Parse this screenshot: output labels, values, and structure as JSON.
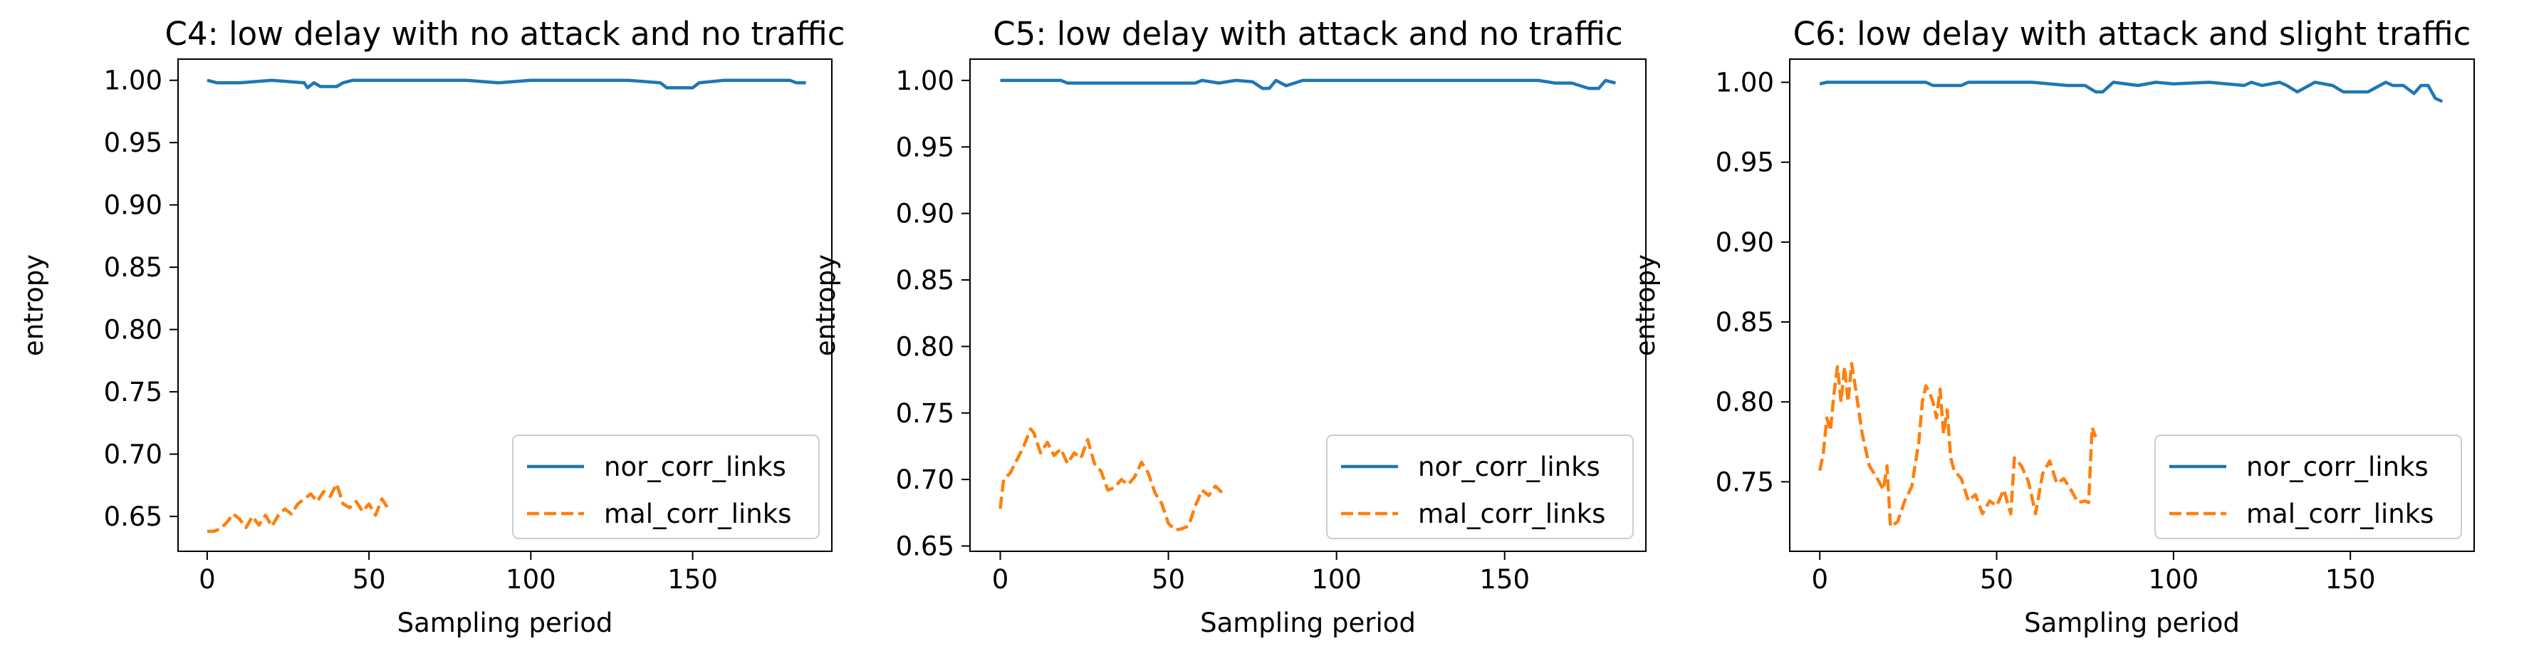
{
  "chart_data": [
    {
      "type": "line",
      "title": "C4: low delay with no attack and no traffic",
      "xlabel": "Sampling period",
      "ylabel": "entropy",
      "xlim": [
        -9,
        193
      ],
      "ylim": [
        0.622,
        1.017
      ],
      "xticks": [
        0,
        50,
        100,
        150
      ],
      "yticks": [
        0.65,
        0.7,
        0.75,
        0.8,
        0.85,
        0.9,
        0.95,
        1.0
      ],
      "legend": "lower-right",
      "grid": false,
      "series": [
        {
          "name": "nor_corr_links",
          "color": "#1f77b4",
          "style": "solid",
          "x": [
            0,
            3,
            10,
            20,
            25,
            30,
            31,
            33,
            35,
            40,
            42,
            45,
            80,
            90,
            100,
            110,
            120,
            130,
            140,
            142,
            150,
            152,
            160,
            170,
            180,
            182,
            185
          ],
          "y": [
            1.0,
            0.998,
            0.998,
            1.0,
            0.999,
            0.998,
            0.994,
            0.998,
            0.995,
            0.995,
            0.998,
            1.0,
            1.0,
            0.998,
            1.0,
            1.0,
            1.0,
            1.0,
            0.998,
            0.994,
            0.994,
            0.998,
            1.0,
            1.0,
            1.0,
            0.998,
            0.998
          ]
        },
        {
          "name": "mal_corr_links",
          "color": "#ff7f0e",
          "style": "dashed",
          "x": [
            0,
            2,
            4,
            6,
            8,
            10,
            12,
            14,
            16,
            18,
            20,
            22,
            24,
            26,
            28,
            30,
            32,
            34,
            36,
            38,
            40,
            42,
            44,
            46,
            48,
            50,
            52,
            54,
            56
          ],
          "y": [
            0.638,
            0.638,
            0.64,
            0.645,
            0.652,
            0.648,
            0.641,
            0.65,
            0.643,
            0.651,
            0.642,
            0.651,
            0.656,
            0.652,
            0.66,
            0.664,
            0.668,
            0.662,
            0.67,
            0.666,
            0.676,
            0.66,
            0.657,
            0.662,
            0.654,
            0.66,
            0.651,
            0.664,
            0.656
          ]
        }
      ]
    },
    {
      "type": "line",
      "title": "C5: low delay with attack and no traffic",
      "xlabel": "Sampling period",
      "ylabel": "entropy",
      "xlim": [
        -9,
        192
      ],
      "ylim": [
        0.646,
        1.016
      ],
      "xticks": [
        0,
        50,
        100,
        150
      ],
      "yticks": [
        0.65,
        0.7,
        0.75,
        0.8,
        0.85,
        0.9,
        0.95,
        1.0
      ],
      "legend": "lower-right",
      "grid": false,
      "series": [
        {
          "name": "nor_corr_links",
          "color": "#1f77b4",
          "style": "solid",
          "x": [
            0,
            10,
            18,
            20,
            40,
            58,
            60,
            65,
            70,
            75,
            78,
            80,
            82,
            85,
            90,
            95,
            100,
            120,
            140,
            160,
            165,
            170,
            175,
            178,
            180,
            183
          ],
          "y": [
            1.0,
            1.0,
            1.0,
            0.998,
            0.998,
            0.998,
            1.0,
            0.998,
            1.0,
            0.999,
            0.994,
            0.994,
            1.0,
            0.996,
            1.0,
            1.0,
            1.0,
            1.0,
            1.0,
            1.0,
            0.998,
            0.998,
            0.994,
            0.994,
            1.0,
            0.998
          ]
        },
        {
          "name": "mal_corr_links",
          "color": "#ff7f0e",
          "style": "dashed",
          "x": [
            0,
            1,
            3,
            5,
            7,
            9,
            10,
            12,
            14,
            16,
            18,
            20,
            22,
            24,
            26,
            28,
            30,
            32,
            34,
            36,
            38,
            40,
            42,
            44,
            46,
            48,
            50,
            52,
            54,
            56,
            58,
            60,
            62,
            64,
            66
          ],
          "y": [
            0.678,
            0.7,
            0.705,
            0.715,
            0.725,
            0.738,
            0.735,
            0.72,
            0.728,
            0.718,
            0.723,
            0.712,
            0.72,
            0.716,
            0.73,
            0.712,
            0.706,
            0.692,
            0.694,
            0.7,
            0.696,
            0.702,
            0.713,
            0.705,
            0.69,
            0.682,
            0.667,
            0.662,
            0.663,
            0.665,
            0.68,
            0.692,
            0.688,
            0.695,
            0.69
          ]
        }
      ]
    },
    {
      "type": "line",
      "title": "C6: low delay with attack and slight traffic",
      "xlabel": "Sampling period",
      "ylabel": "entropy",
      "xlim": [
        -8.5,
        185
      ],
      "ylim": [
        0.7065,
        1.0145
      ],
      "xticks": [
        0,
        50,
        100,
        150
      ],
      "yticks": [
        0.75,
        0.8,
        0.85,
        0.9,
        0.95,
        1.0
      ],
      "legend": "lower-right",
      "grid": false,
      "series": [
        {
          "name": "nor_corr_links",
          "color": "#1f77b4",
          "style": "solid",
          "x": [
            0,
            2,
            10,
            30,
            32,
            40,
            42,
            50,
            60,
            70,
            75,
            78,
            80,
            83,
            90,
            95,
            100,
            110,
            120,
            122,
            125,
            130,
            132,
            135,
            140,
            145,
            148,
            150,
            155,
            160,
            162,
            165,
            168,
            170,
            172,
            174,
            176
          ],
          "y": [
            0.999,
            1.0,
            1.0,
            1.0,
            0.998,
            0.998,
            1.0,
            1.0,
            1.0,
            0.998,
            0.998,
            0.994,
            0.994,
            1.0,
            0.998,
            1.0,
            0.999,
            1.0,
            0.998,
            1.0,
            0.998,
            1.0,
            0.998,
            0.994,
            1.0,
            0.998,
            0.994,
            0.994,
            0.994,
            1.0,
            0.998,
            0.998,
            0.993,
            0.998,
            0.998,
            0.99,
            0.988
          ]
        },
        {
          "name": "mal_corr_links",
          "color": "#ff7f0e",
          "style": "dashed",
          "x": [
            0,
            1,
            2,
            3,
            4,
            5,
            6,
            7,
            8,
            9,
            10,
            12,
            14,
            16,
            18,
            19,
            20,
            22,
            24,
            26,
            28,
            29,
            30,
            31,
            32,
            33,
            34,
            35,
            36,
            37,
            38,
            40,
            42,
            44,
            46,
            48,
            50,
            52,
            54,
            55,
            57,
            59,
            61,
            63,
            65,
            67,
            69,
            71,
            73,
            75,
            76,
            77,
            78
          ],
          "y": [
            0.757,
            0.768,
            0.79,
            0.782,
            0.805,
            0.822,
            0.8,
            0.822,
            0.8,
            0.824,
            0.81,
            0.78,
            0.76,
            0.753,
            0.745,
            0.76,
            0.722,
            0.725,
            0.738,
            0.747,
            0.775,
            0.8,
            0.81,
            0.806,
            0.8,
            0.79,
            0.808,
            0.78,
            0.795,
            0.765,
            0.757,
            0.752,
            0.738,
            0.742,
            0.73,
            0.738,
            0.735,
            0.745,
            0.73,
            0.765,
            0.76,
            0.75,
            0.73,
            0.755,
            0.763,
            0.749,
            0.752,
            0.745,
            0.737,
            0.738,
            0.737,
            0.784,
            0.778
          ]
        }
      ]
    }
  ]
}
